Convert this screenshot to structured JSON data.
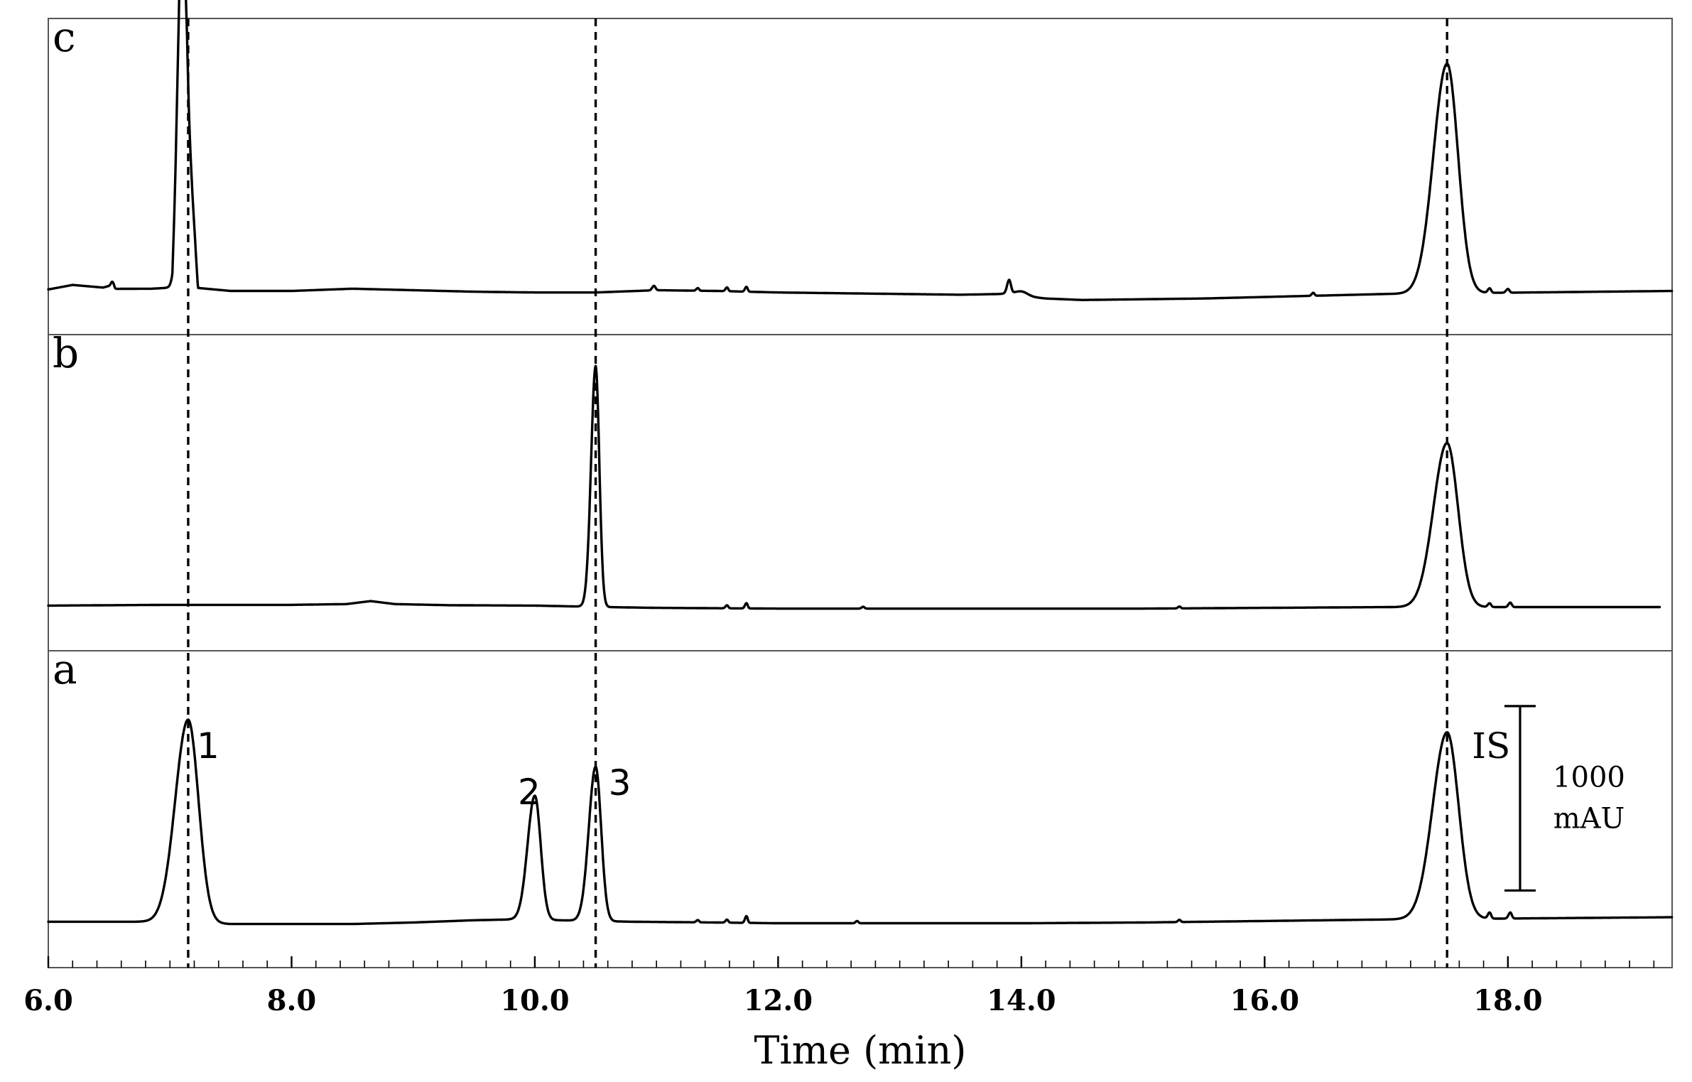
{
  "chart_data": {
    "type": "line",
    "title": "",
    "xlabel": "Time (min)",
    "ylabel": "",
    "xlim": [
      6.0,
      19.35
    ],
    "grid": false,
    "x_ticks": [
      "6.0",
      "8.0",
      "10.0",
      "12.0",
      "14.0",
      "16.0",
      "18.0"
    ],
    "x_tick_values": [
      6,
      8,
      10,
      12,
      14,
      16,
      18
    ],
    "minor_tick_step": 0.2,
    "reference_lines_x": [
      7.15,
      10.5,
      17.5
    ],
    "panel_ylim": [
      -600,
      3600
    ],
    "panels": [
      {
        "label": "c",
        "baseline": [
          [
            6.0,
            0
          ],
          [
            6.2,
            60
          ],
          [
            6.45,
            25
          ],
          [
            6.52,
            55
          ],
          [
            6.55,
            8
          ],
          [
            6.85,
            10
          ],
          [
            7.02,
            25
          ],
          [
            7.1,
            2580
          ],
          [
            7.14,
            2480
          ],
          [
            7.23,
            20
          ],
          [
            7.5,
            -20
          ],
          [
            8.0,
            -20
          ],
          [
            8.5,
            10
          ],
          [
            9.0,
            -10
          ],
          [
            9.5,
            -30
          ],
          [
            10.0,
            -40
          ],
          [
            10.5,
            -40
          ],
          [
            11.0,
            -10
          ],
          [
            11.5,
            -20
          ],
          [
            12.0,
            -40
          ],
          [
            12.5,
            -50
          ],
          [
            13.0,
            -60
          ],
          [
            13.5,
            -70
          ],
          [
            13.85,
            -60
          ],
          [
            14.2,
            -120
          ],
          [
            14.5,
            -140
          ],
          [
            15.0,
            -130
          ],
          [
            15.5,
            -120
          ],
          [
            16.0,
            -100
          ],
          [
            16.5,
            -80
          ],
          [
            17.0,
            -60
          ],
          [
            19.35,
            -20
          ]
        ],
        "peaks": [
          {
            "t": 7.1,
            "height": 2580,
            "width": 0.028
          },
          {
            "t": 17.5,
            "height": 3050,
            "width": 0.09
          },
          {
            "t": 6.53,
            "height": 60,
            "width": 0.01
          },
          {
            "t": 10.98,
            "height": 60,
            "width": 0.012
          },
          {
            "t": 11.34,
            "height": 35,
            "width": 0.01
          },
          {
            "t": 11.58,
            "height": 50,
            "width": 0.01
          },
          {
            "t": 11.74,
            "height": 65,
            "width": 0.01
          },
          {
            "t": 13.9,
            "height": 180,
            "width": 0.014
          },
          {
            "t": 14.0,
            "height": 60,
            "width": 0.05
          },
          {
            "t": 16.4,
            "height": 40,
            "width": 0.01
          },
          {
            "t": 17.85,
            "height": 60,
            "width": 0.012
          },
          {
            "t": 18.0,
            "height": 50,
            "width": 0.012
          }
        ]
      },
      {
        "label": "b",
        "baseline": [
          [
            6.0,
            0
          ],
          [
            7.0,
            10
          ],
          [
            8.0,
            10
          ],
          [
            8.45,
            20
          ],
          [
            8.65,
            60
          ],
          [
            8.85,
            20
          ],
          [
            9.3,
            5
          ],
          [
            10.0,
            0
          ],
          [
            10.6,
            -20
          ],
          [
            11.0,
            -30
          ],
          [
            12.0,
            -40
          ],
          [
            13.0,
            -40
          ],
          [
            14.0,
            -40
          ],
          [
            15.0,
            -40
          ],
          [
            16.0,
            -30
          ],
          [
            17.0,
            -20
          ],
          [
            19.25,
            -20
          ]
        ],
        "peaks": [
          {
            "t": 10.5,
            "height": 3200,
            "width": 0.03
          },
          {
            "t": 17.5,
            "height": 2180,
            "width": 0.09
          },
          {
            "t": 11.58,
            "height": 40,
            "width": 0.01
          },
          {
            "t": 11.74,
            "height": 70,
            "width": 0.01
          },
          {
            "t": 12.7,
            "height": 25,
            "width": 0.01
          },
          {
            "t": 15.3,
            "height": 25,
            "width": 0.01
          },
          {
            "t": 17.85,
            "height": 50,
            "width": 0.012
          },
          {
            "t": 18.02,
            "height": 60,
            "width": 0.012
          }
        ]
      },
      {
        "label": "a",
        "baseline": [
          [
            6.0,
            0
          ],
          [
            6.8,
            0
          ],
          [
            7.5,
            -30
          ],
          [
            8.0,
            -30
          ],
          [
            8.5,
            -30
          ],
          [
            9.0,
            -10
          ],
          [
            9.5,
            20
          ],
          [
            9.8,
            30
          ],
          [
            10.2,
            20
          ],
          [
            10.8,
            0
          ],
          [
            11.5,
            -10
          ],
          [
            12.0,
            -20
          ],
          [
            13.0,
            -20
          ],
          [
            14.0,
            -20
          ],
          [
            15.0,
            -10
          ],
          [
            16.0,
            10
          ],
          [
            17.0,
            30
          ],
          [
            19.35,
            60
          ]
        ],
        "peaks": [
          {
            "t": 7.15,
            "height": 2700,
            "width": 0.085
          },
          {
            "t": 10.0,
            "height": 1650,
            "width": 0.048
          },
          {
            "t": 10.5,
            "height": 2050,
            "width": 0.045
          },
          {
            "t": 17.5,
            "height": 2480,
            "width": 0.095
          },
          {
            "t": 11.34,
            "height": 30,
            "width": 0.01
          },
          {
            "t": 11.58,
            "height": 40,
            "width": 0.01
          },
          {
            "t": 11.74,
            "height": 90,
            "width": 0.01
          },
          {
            "t": 12.65,
            "height": 30,
            "width": 0.01
          },
          {
            "t": 15.3,
            "height": 30,
            "width": 0.01
          },
          {
            "t": 17.85,
            "height": 80,
            "width": 0.012
          },
          {
            "t": 18.02,
            "height": 80,
            "width": 0.012
          }
        ],
        "annotations": [
          {
            "text": "1",
            "t": 7.15
          },
          {
            "text": "2",
            "t": 10.0
          },
          {
            "text": "3",
            "t": 10.5
          },
          {
            "text": "IS",
            "t": 17.5
          }
        ]
      }
    ],
    "scale_bar": {
      "value": 1000,
      "line1": "1000",
      "line2": "mAU",
      "t": 18.1
    }
  }
}
